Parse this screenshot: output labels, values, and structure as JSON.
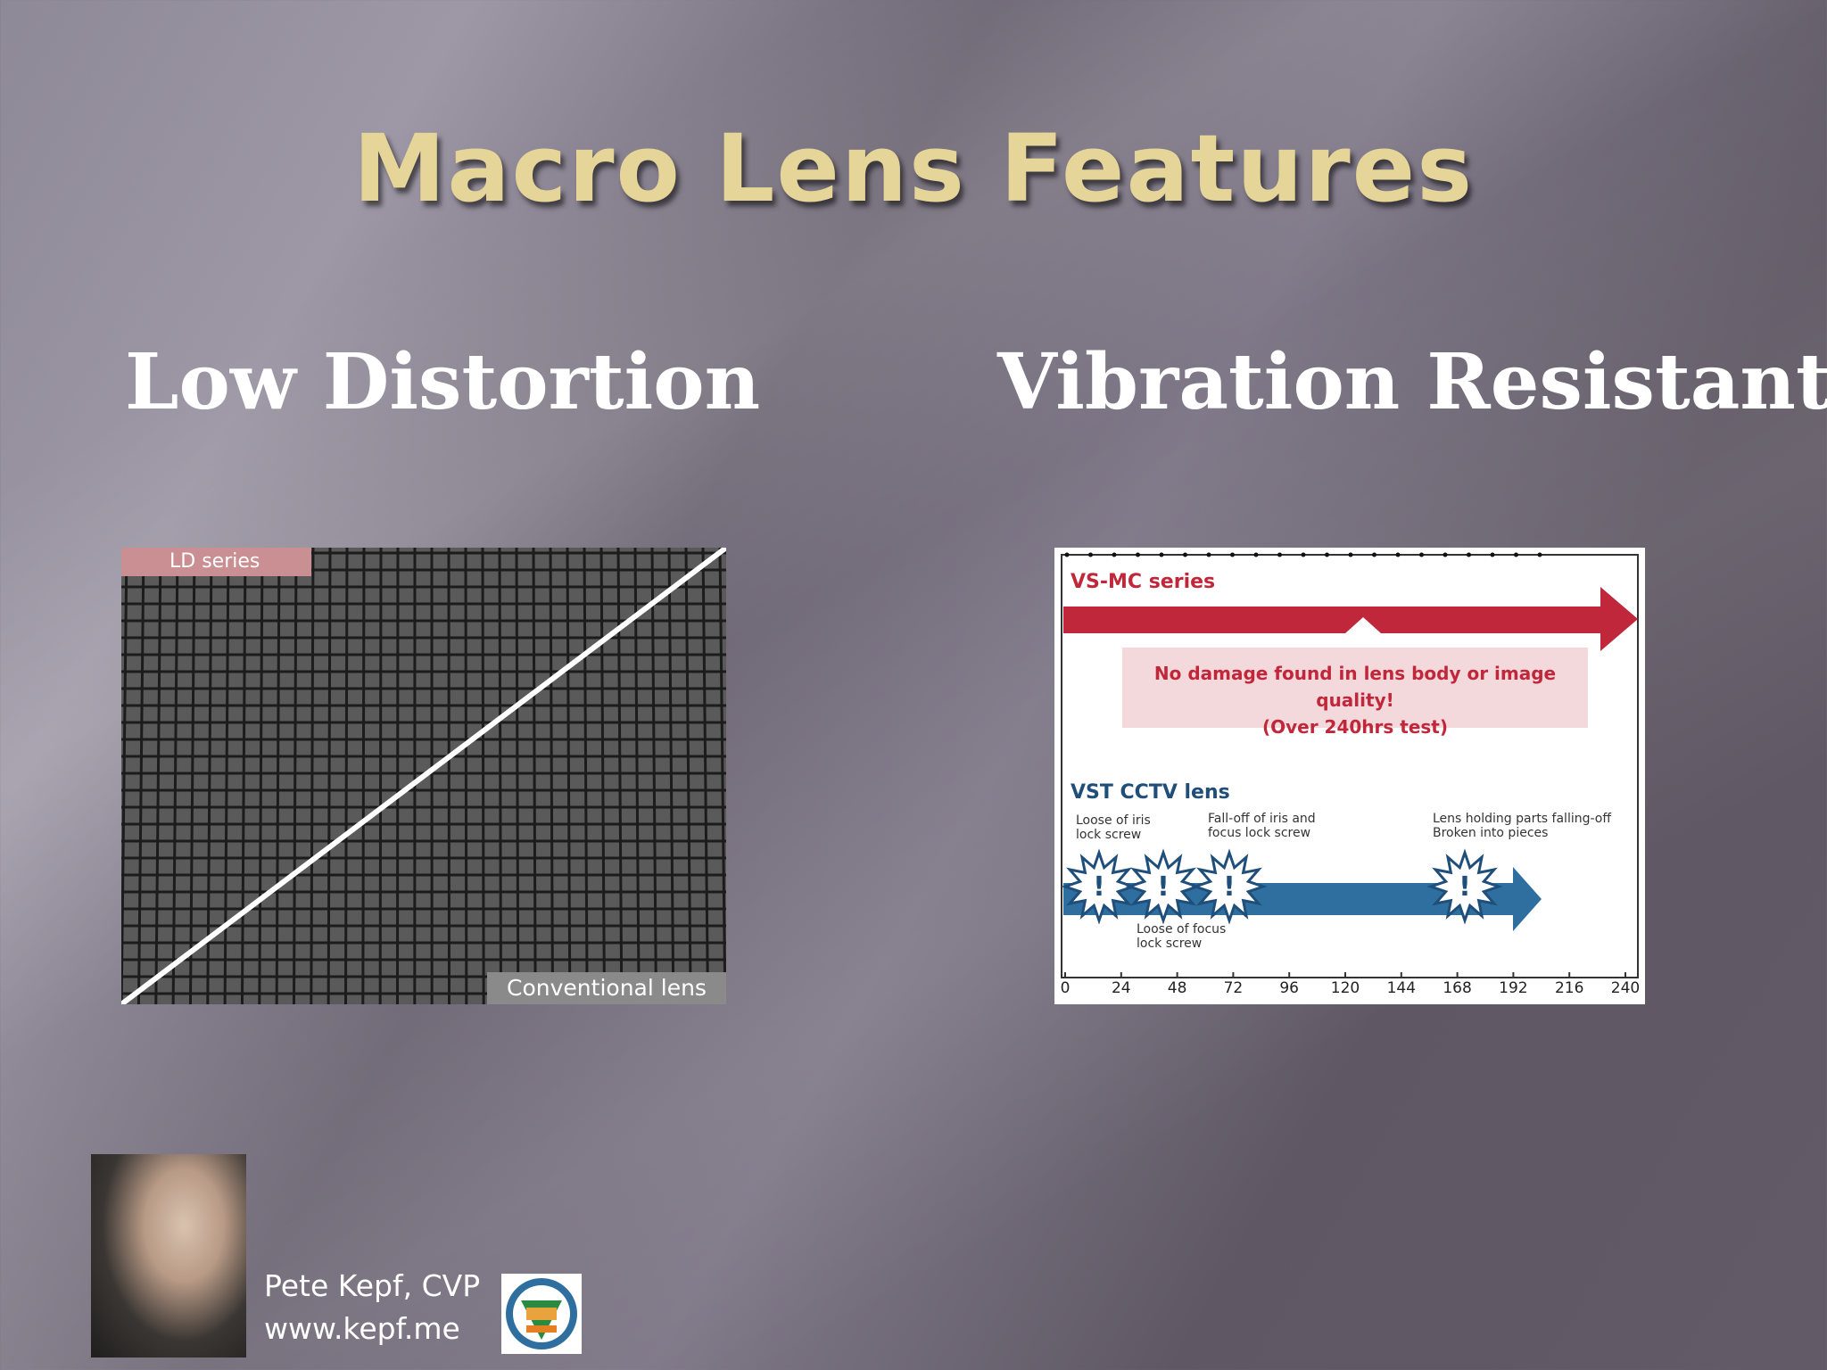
{
  "slide": {
    "title": "Macro Lens Features",
    "left_heading": "Low Distortion",
    "right_heading": "Vibration Resistant"
  },
  "distortion_image": {
    "top_label": "LD series",
    "bottom_label": "Conventional lens"
  },
  "vibration_chart": {
    "top_series": "VS-MC series",
    "result_line1": "No damage found in lens body or image quality!",
    "result_line2": "(Over 240hrs test)",
    "bottom_series": "VST CCTV lens",
    "note_loose_iris": "Loose of iris lock screw",
    "note_falloff": "Fall-off of iris and focus lock screw",
    "note_holding": "Lens holding parts falling-off Broken into pieces",
    "note_loose_focus": "Loose of focus lock screw",
    "ticks": [
      "0",
      "24",
      "48",
      "72",
      "96",
      "120",
      "144",
      "168",
      "192",
      "216",
      "240"
    ],
    "colors": {
      "red": "#c1273a",
      "blue": "#2f6f9f"
    }
  },
  "footer": {
    "author": "Pete Kepf, CVP",
    "website": "www.kepf.me"
  }
}
